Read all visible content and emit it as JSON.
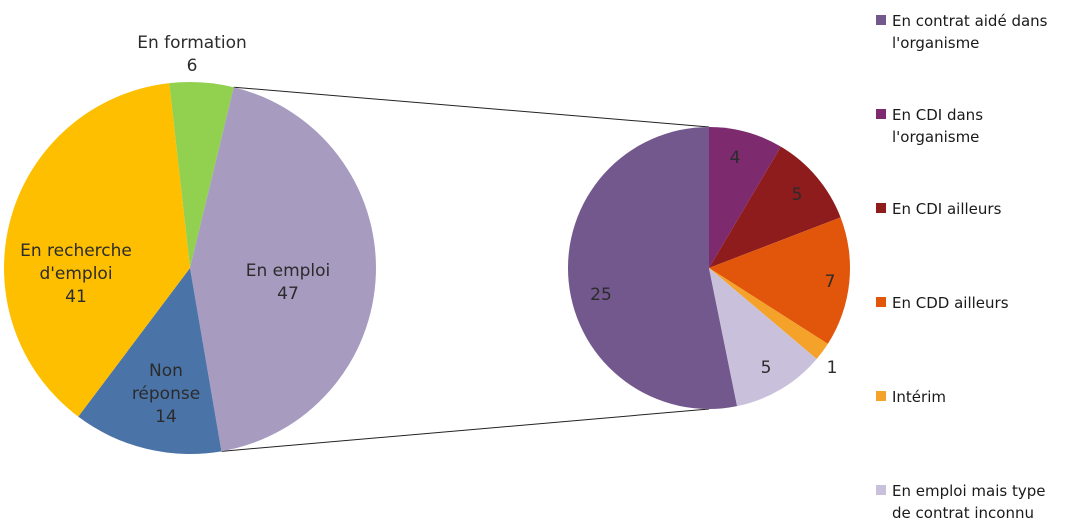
{
  "chart_data": [
    {
      "type": "pie",
      "slices": [
        {
          "label_lines": [
            "En formation"
          ],
          "value": 6,
          "color": "#92D050"
        },
        {
          "label_lines": [
            "En emploi"
          ],
          "value": 47,
          "color": "#A89BC0"
        },
        {
          "label_lines": [
            "Non",
            "réponse"
          ],
          "value": 14,
          "color": "#4A73A8"
        },
        {
          "label_lines": [
            "En recherche",
            "d'emploi"
          ],
          "value": 41,
          "color": "#FDBF00"
        }
      ]
    },
    {
      "type": "pie",
      "legend_position": "right",
      "slices": [
        {
          "legend_lines": [
            "En contrat aidé dans",
            "l'organisme"
          ],
          "value": 25,
          "color": "#73588E"
        },
        {
          "legend_lines": [
            "En CDI dans",
            "l'organisme"
          ],
          "value": 4,
          "color": "#7D2B6E"
        },
        {
          "legend_lines": [
            "En CDI ailleurs"
          ],
          "value": 5,
          "color": "#8E1C1C"
        },
        {
          "legend_lines": [
            "En CDD ailleurs"
          ],
          "value": 7,
          "color": "#E2560B"
        },
        {
          "legend_lines": [
            "Intérim"
          ],
          "value": 1,
          "color": "#F5A22A"
        },
        {
          "legend_lines": [
            "En emploi mais  type",
            "de contrat inconnu"
          ],
          "value": 5,
          "color": "#C9C1DC"
        }
      ]
    }
  ]
}
